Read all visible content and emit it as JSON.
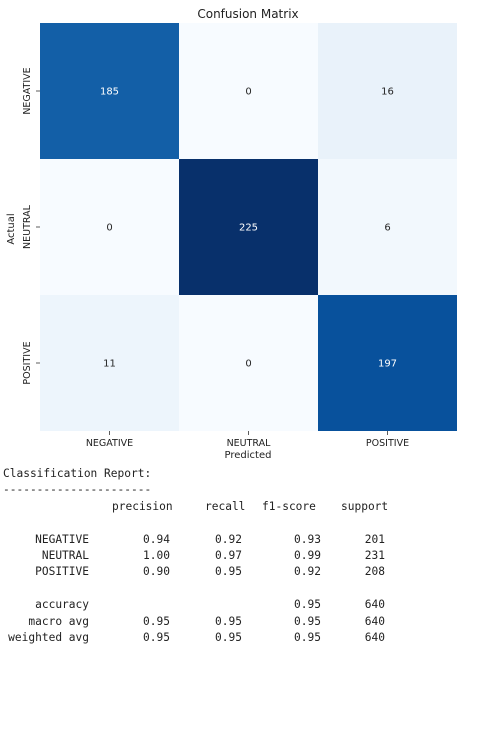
{
  "chart_data": {
    "type": "heatmap",
    "title": "Confusion Matrix",
    "xlabel": "Predicted",
    "ylabel": "Actual",
    "x_categories": [
      "NEGATIVE",
      "NEUTRAL",
      "POSITIVE"
    ],
    "y_categories": [
      "NEGATIVE",
      "NEUTRAL",
      "POSITIVE"
    ],
    "values": [
      [
        185,
        0,
        16
      ],
      [
        0,
        225,
        6
      ],
      [
        11,
        0,
        197
      ]
    ],
    "colormap": "Blues",
    "colorbar": false
  },
  "report": {
    "title": "Classification Report:",
    "separator": "----------------------",
    "headers": [
      "precision",
      "recall",
      "f1-score",
      "support"
    ],
    "rows": [
      {
        "label": "NEGATIVE",
        "precision": "0.94",
        "recall": "0.92",
        "f1": "0.93",
        "support": "201"
      },
      {
        "label": "NEUTRAL",
        "precision": "1.00",
        "recall": "0.97",
        "f1": "0.99",
        "support": "231"
      },
      {
        "label": "POSITIVE",
        "precision": "0.90",
        "recall": "0.95",
        "f1": "0.92",
        "support": "208"
      }
    ],
    "summary": [
      {
        "label": "accuracy",
        "precision": "",
        "recall": "",
        "f1": "0.95",
        "support": "640"
      },
      {
        "label": "macro avg",
        "precision": "0.95",
        "recall": "0.95",
        "f1": "0.95",
        "support": "640"
      },
      {
        "label": "weighted avg",
        "precision": "0.95",
        "recall": "0.95",
        "f1": "0.95",
        "support": "640"
      }
    ]
  }
}
